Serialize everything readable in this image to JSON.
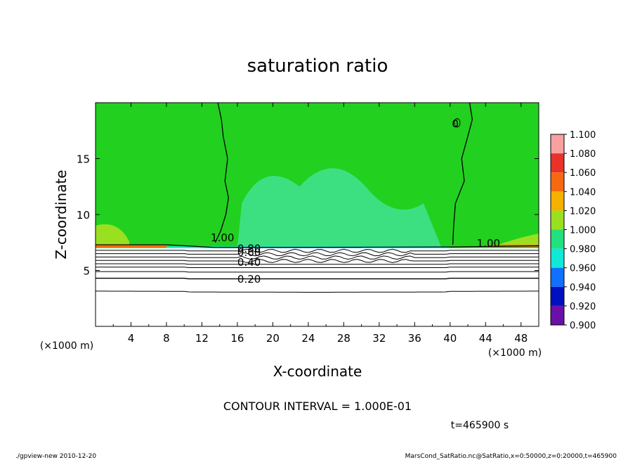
{
  "chart_data": {
    "type": "heatmap",
    "title": "saturation ratio",
    "xlabel": "X-coordinate",
    "ylabel": "Z-coordinate",
    "x_unit": "(×1000 m)",
    "y_unit": "(×1000 m)",
    "xlim": [
      0,
      50
    ],
    "ylim": [
      0,
      20
    ],
    "x_ticks": [
      4,
      8,
      12,
      16,
      20,
      24,
      28,
      32,
      36,
      40,
      44,
      48
    ],
    "y_ticks": [
      5,
      10,
      15
    ],
    "colorbar": {
      "levels": [
        "1.100",
        "1.080",
        "1.060",
        "1.040",
        "1.020",
        "1.000",
        "0.980",
        "0.960",
        "0.940",
        "0.920",
        "0.900"
      ],
      "colors": [
        "#f9a0a0",
        "#e8322a",
        "#f56a10",
        "#f5b000",
        "#9be020",
        "#22d020",
        "#22e080",
        "#10e8d8",
        "#1070ff",
        "#0010c0",
        "#6a10a8"
      ]
    },
    "contour_labels": [
      "1.00",
      "0.80",
      "0.60",
      "0.40",
      "0.20",
      "0"
    ],
    "contour_interval_label": "CONTOUR INTERVAL = 1.000E-01",
    "time_label": "t=465900 s"
  },
  "colors": {
    "field_main": "#22d020",
    "field_low": "#3de080",
    "field_high": "#9be020",
    "below_cloud": "#ffffff"
  },
  "footer": {
    "left": "./gpview-new  2010-12-20",
    "right": "MarsCond_SatRatio.nc@SatRatio,x=0:50000,z=0:20000,t=465900"
  }
}
